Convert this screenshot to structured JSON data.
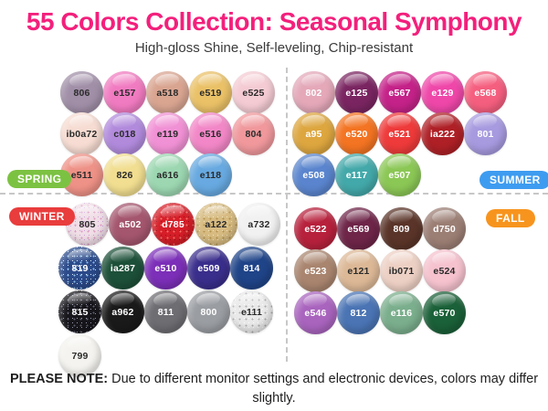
{
  "header": {
    "title": "55 Colors Collection: Seasonal Symphony",
    "title_color": "#F3207C",
    "subtitle": "High-gloss Shine, Self-leveling, Chip-resistant"
  },
  "note": {
    "label": "PLEASE NOTE:",
    "text": " Due to different monitor settings and electronic devices, colors may differ slightly."
  },
  "divider_color": "#c7c7c7",
  "sections": [
    {
      "id": "spring",
      "label": "SPRING",
      "badge_color": "#7CC242",
      "rows": [
        [
          {
            "code": "806",
            "color": "#A18FA8",
            "text": "dark"
          },
          {
            "code": "e157",
            "color": "#F17BC1",
            "text": "dark"
          },
          {
            "code": "a518",
            "color": "#D9A591",
            "text": "dark"
          },
          {
            "code": "e519",
            "color": "#EAC167",
            "text": "dark"
          },
          {
            "code": "e525",
            "color": "#F4CBD3",
            "text": "dark"
          }
        ],
        [
          {
            "code": "ib0a72",
            "color": "#F6DCD2",
            "text": "dark"
          },
          {
            "code": "c018",
            "color": "#B18ADC",
            "text": "dark"
          },
          {
            "code": "e119",
            "color": "#F191D5",
            "text": "dark"
          },
          {
            "code": "e516",
            "color": "#F287C7",
            "text": "dark"
          },
          {
            "code": "804",
            "color": "#F0989C",
            "text": "dark"
          }
        ],
        [
          {
            "code": "e511",
            "color": "#EE9186",
            "text": "dark"
          },
          {
            "code": "826",
            "color": "#F1DE90",
            "text": "dark"
          },
          {
            "code": "a616",
            "color": "#9CD7B1",
            "text": "dark"
          },
          {
            "code": "e118",
            "color": "#67A9E0",
            "text": "dark"
          }
        ]
      ]
    },
    {
      "id": "summer",
      "label": "SUMMER",
      "badge_color": "#3E9CF0",
      "rows": [
        [
          {
            "code": "802",
            "color": "#E4A8B9",
            "text": "light"
          },
          {
            "code": "e125",
            "color": "#7A2561",
            "text": "light"
          },
          {
            "code": "e567",
            "color": "#C42288",
            "text": "light"
          },
          {
            "code": "e129",
            "color": "#EF47A9",
            "text": "light"
          },
          {
            "code": "e568",
            "color": "#F55F7F",
            "text": "light"
          }
        ],
        [
          {
            "code": "a95",
            "color": "#DDA63F",
            "text": "light"
          },
          {
            "code": "e520",
            "color": "#F37422",
            "text": "light"
          },
          {
            "code": "e521",
            "color": "#EE3A3A",
            "text": "light"
          },
          {
            "code": "ia222",
            "color": "#AE2026",
            "text": "light"
          },
          {
            "code": "801",
            "color": "#A79ADF",
            "text": "light"
          }
        ],
        [
          {
            "code": "e508",
            "color": "#5A85CE",
            "text": "light"
          },
          {
            "code": "e117",
            "color": "#43A8A9",
            "text": "light"
          },
          {
            "code": "e507",
            "color": "#8BC755",
            "text": "light"
          }
        ]
      ]
    },
    {
      "id": "winter",
      "label": "WINTER",
      "badge_color": "#E93C3C",
      "rows": [
        [
          {
            "code": "805",
            "color": "#F0DEE7",
            "text": "dark",
            "specks": [
              "#E09CC0",
              "#C9A0D8"
            ]
          },
          {
            "code": "a502",
            "color": "#A4566E",
            "text": "light"
          },
          {
            "code": "d785",
            "color": "#D61E28",
            "text": "light",
            "specks": [
              "#F9736B",
              "#9E0F14"
            ]
          },
          {
            "code": "a122",
            "color": "#D7BB81",
            "text": "dark",
            "specks": [
              "#B3934E",
              "#F2E3BC"
            ]
          },
          {
            "code": "a732",
            "color": "#F1F1F1",
            "text": "dark"
          }
        ],
        [
          {
            "code": "819",
            "color": "#2B4A8A",
            "text": "light",
            "specks": [
              "#8FC0EE",
              "#DCE9F8"
            ]
          },
          {
            "code": "ia287",
            "color": "#1D5039",
            "text": "light"
          },
          {
            "code": "e510",
            "color": "#7C2FB8",
            "text": "light"
          },
          {
            "code": "e509",
            "color": "#3A2E8C",
            "text": "light"
          },
          {
            "code": "814",
            "color": "#1F4488",
            "text": "light"
          }
        ],
        [
          {
            "code": "815",
            "color": "#16161B",
            "text": "light",
            "specks": [
              "#5E5E6C",
              "#9A9AB0"
            ]
          },
          {
            "code": "a962",
            "color": "#1A1A1A",
            "text": "light"
          },
          {
            "code": "811",
            "color": "#6D6D72",
            "text": "light"
          },
          {
            "code": "800",
            "color": "#9A9DA2",
            "text": "light"
          },
          {
            "code": "e111",
            "color": "#E9E9E9",
            "text": "dark",
            "specks": [
              "#ADADAD",
              "#FDFDFD"
            ]
          }
        ],
        [
          {
            "code": "799",
            "color": "#F4F3EF",
            "text": "dark"
          }
        ]
      ]
    },
    {
      "id": "fall",
      "label": "FALL",
      "badge_color": "#F7941E",
      "rows": [
        [
          {
            "code": "e522",
            "color": "#B7213C",
            "text": "light"
          },
          {
            "code": "e569",
            "color": "#6E2548",
            "text": "light"
          },
          {
            "code": "809",
            "color": "#5A3428",
            "text": "light"
          },
          {
            "code": "d750",
            "color": "#9B7E74",
            "text": "light"
          }
        ],
        [
          {
            "code": "e523",
            "color": "#A9856F",
            "text": "light"
          },
          {
            "code": "e121",
            "color": "#DCB896",
            "text": "dark"
          },
          {
            "code": "ib071",
            "color": "#EDD0C4",
            "text": "dark"
          },
          {
            "code": "e524",
            "color": "#F5C2CE",
            "text": "dark"
          }
        ],
        [
          {
            "code": "e546",
            "color": "#A964BE",
            "text": "light"
          },
          {
            "code": "812",
            "color": "#4A74B4",
            "text": "light"
          },
          {
            "code": "e116",
            "color": "#7AAE8C",
            "text": "light"
          },
          {
            "code": "e570",
            "color": "#1A6038",
            "text": "light"
          }
        ]
      ]
    }
  ]
}
